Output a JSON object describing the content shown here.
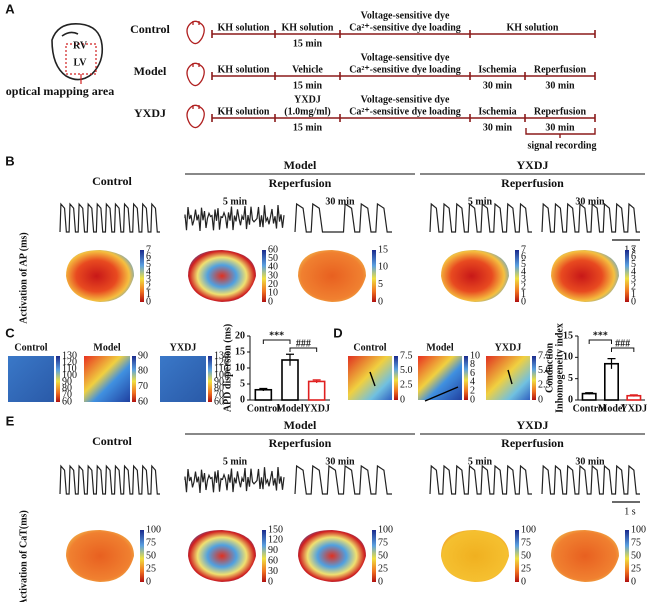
{
  "A": {
    "label": "A",
    "rv": "RV",
    "lv": "LV",
    "area": "optical mapping area",
    "rows": [
      {
        "group": "Control",
        "steps": [
          {
            "lines": [
              "KH solution"
            ]
          },
          {
            "lines": [
              "KH solution"
            ],
            "time": "15 min"
          },
          {
            "lines": [
              "Voltage-sensitive dye",
              "Ca²⁺-sensitive dye  loading"
            ]
          },
          {
            "lines": [
              "KH solution"
            ]
          }
        ]
      },
      {
        "group": "Model",
        "steps": [
          {
            "lines": [
              "KH solution"
            ]
          },
          {
            "lines": [
              "Vehicle"
            ],
            "time": "15 min"
          },
          {
            "lines": [
              "Voltage-sensitive dye",
              "Ca²⁺-sensitive dye  loading"
            ]
          },
          {
            "lines": [
              "Ischemia"
            ],
            "time": "30 min"
          },
          {
            "lines": [
              "Reperfusion"
            ],
            "time": "30 min"
          }
        ]
      },
      {
        "group": "YXDJ",
        "steps": [
          {
            "lines": [
              "KH solution"
            ]
          },
          {
            "lines": [
              "YXDJ",
              "(1.0mg/ml)"
            ],
            "time": "15 min"
          },
          {
            "lines": [
              "Voltage-sensitive dye",
              "Ca²⁺-sensitive dye  loading"
            ]
          },
          {
            "lines": [
              "Ischemia"
            ],
            "time": "30 min"
          },
          {
            "lines": [
              "Reperfusion"
            ],
            "time": "30 min"
          }
        ]
      }
    ],
    "recording": "signal  recording"
  },
  "B": {
    "label": "B",
    "ylabel": "Activation of AP (ms)",
    "control": "Control",
    "groups": [
      {
        "name": "Model",
        "sub": "Reperfusion",
        "times": [
          "5 min",
          "30 min"
        ]
      },
      {
        "name": "YXDJ",
        "sub": "Reperfusion",
        "times": [
          "5 min",
          "30 min"
        ]
      }
    ],
    "scale": "1 s",
    "colorbars": [
      [
        "7",
        "6",
        "5",
        "4",
        "3",
        "2",
        "1",
        "0"
      ],
      [
        "60",
        "50",
        "40",
        "30",
        "20",
        "10",
        "0"
      ],
      [
        "15",
        "10",
        "5",
        "0"
      ],
      [
        "7",
        "6",
        "5",
        "4",
        "3",
        "2",
        "1",
        "0"
      ],
      [
        "7",
        "6",
        "5",
        "4",
        "3",
        "2",
        "1",
        "0"
      ]
    ]
  },
  "C": {
    "label": "C",
    "maps": [
      "Control",
      "Model",
      "YXDJ"
    ],
    "colorbars": [
      [
        "130",
        "120",
        "110",
        "100",
        "90",
        "80",
        "70",
        "60"
      ],
      [
        "90",
        "80",
        "70",
        "60"
      ],
      [
        "130",
        "120",
        "110",
        "100",
        "90",
        "80",
        "70",
        "60"
      ]
    ],
    "chart": {
      "type": "bar",
      "ylabel": "APD dispersion (ms)",
      "categories": [
        "Control",
        "Model",
        "YXDJ"
      ],
      "values": [
        3.2,
        12.5,
        5.8
      ],
      "errors": [
        0.4,
        1.8,
        0.5
      ],
      "colors": [
        "#000000",
        "#000000",
        "#e02020"
      ],
      "ylim": [
        0,
        20
      ],
      "yticks": [
        0,
        5,
        10,
        15,
        20
      ],
      "sig": [
        "***",
        "###"
      ]
    }
  },
  "D": {
    "label": "D",
    "maps": [
      "Control",
      "Model",
      "YXDJ"
    ],
    "colorbars": [
      [
        "7.5",
        "5.0",
        "2.5",
        "0"
      ],
      [
        "10",
        "8",
        "6",
        "4",
        "2",
        "0"
      ],
      [
        "7.5",
        "5.0",
        "2.5",
        "0"
      ]
    ],
    "chart": {
      "type": "bar",
      "ylabel": [
        "Conduction",
        "Inhomogeneity index"
      ],
      "categories": [
        "Control",
        "Model",
        "YXDJ"
      ],
      "values": [
        1.5,
        8.5,
        1.0
      ],
      "errors": [
        0.2,
        1.2,
        0.2
      ],
      "colors": [
        "#000000",
        "#000000",
        "#e02020"
      ],
      "ylim": [
        0,
        15
      ],
      "yticks": [
        0,
        5,
        10,
        15
      ],
      "sig": [
        "***",
        "###"
      ]
    }
  },
  "E": {
    "label": "E",
    "ylabel": "Activation of CaT(ms)",
    "control": "Control",
    "groups": [
      {
        "name": "Model",
        "sub": "Reperfusion",
        "times": [
          "5 min",
          "30 min"
        ]
      },
      {
        "name": "YXDJ",
        "sub": "Reperfusion",
        "times": [
          "5 min",
          "30 min"
        ]
      }
    ],
    "scale": "1 s",
    "colorbars": [
      [
        "100",
        "75",
        "50",
        "25",
        "0"
      ],
      [
        "150",
        "120",
        "90",
        "60",
        "30",
        "0"
      ],
      [
        "100",
        "75",
        "50",
        "25",
        "0"
      ],
      [
        "100",
        "75",
        "50",
        "25",
        "0"
      ],
      [
        "100",
        "75",
        "50",
        "25",
        "0"
      ]
    ]
  }
}
